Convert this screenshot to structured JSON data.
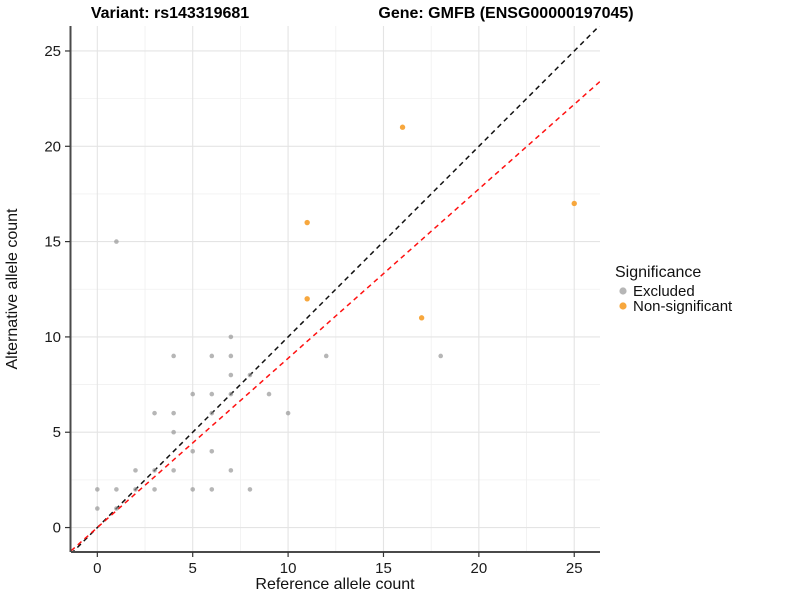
{
  "chart_data": {
    "type": "scatter",
    "titles": {
      "left": "Variant: rs143319681",
      "right": "Gene: GMFB (ENSG00000197045)"
    },
    "xlabel": "Reference allele count",
    "ylabel": "Alternative allele count",
    "xticks": [
      0,
      5,
      10,
      15,
      20,
      25
    ],
    "yticks": [
      0,
      5,
      10,
      15,
      20,
      25
    ],
    "xlim": [
      -1.38,
      26.35
    ],
    "ylim": [
      -1.23,
      26.31
    ],
    "grid": {
      "major": true,
      "minor": true
    },
    "legend": {
      "title": "Significance",
      "position": "right"
    },
    "series": [
      {
        "name": "Excluded",
        "color": "#8f8f8f",
        "opacity": 0.65,
        "radius": 2.3,
        "points": [
          [
            0,
            1
          ],
          [
            0,
            2
          ],
          [
            1,
            1
          ],
          [
            1,
            2
          ],
          [
            1,
            15
          ],
          [
            2,
            2
          ],
          [
            2,
            3
          ],
          [
            3,
            2
          ],
          [
            3,
            3
          ],
          [
            3,
            6
          ],
          [
            4,
            3
          ],
          [
            4,
            5
          ],
          [
            4,
            6
          ],
          [
            4,
            9
          ],
          [
            5,
            2
          ],
          [
            5,
            4
          ],
          [
            5,
            7
          ],
          [
            6,
            2
          ],
          [
            6,
            4
          ],
          [
            6,
            6
          ],
          [
            6,
            7
          ],
          [
            6,
            9
          ],
          [
            7,
            3
          ],
          [
            7,
            7
          ],
          [
            7,
            8
          ],
          [
            7,
            9
          ],
          [
            7,
            10
          ],
          [
            8,
            2
          ],
          [
            8,
            8
          ],
          [
            9,
            7
          ],
          [
            10,
            6
          ],
          [
            12,
            9
          ],
          [
            18,
            9
          ]
        ]
      },
      {
        "name": "Non-significant",
        "color": "#f7a233",
        "opacity": 0.95,
        "radius": 2.7,
        "points": [
          [
            11,
            12
          ],
          [
            11,
            16
          ],
          [
            16,
            21
          ],
          [
            17,
            11
          ],
          [
            25,
            17
          ]
        ]
      }
    ],
    "lines": [
      {
        "name": "identity-line",
        "color": "#111111",
        "slope": 1.0,
        "intercept": 0,
        "dash": "5,4",
        "width": 1.5
      },
      {
        "name": "fit-line",
        "color": "#ff1111",
        "slope": 0.888,
        "intercept": 0,
        "dash": "5,4",
        "width": 1.5
      }
    ],
    "colors": {
      "grid_major": "#e4e4e4",
      "grid_minor": "#f0f0f0",
      "axis_line": "#4a4a4a"
    }
  }
}
